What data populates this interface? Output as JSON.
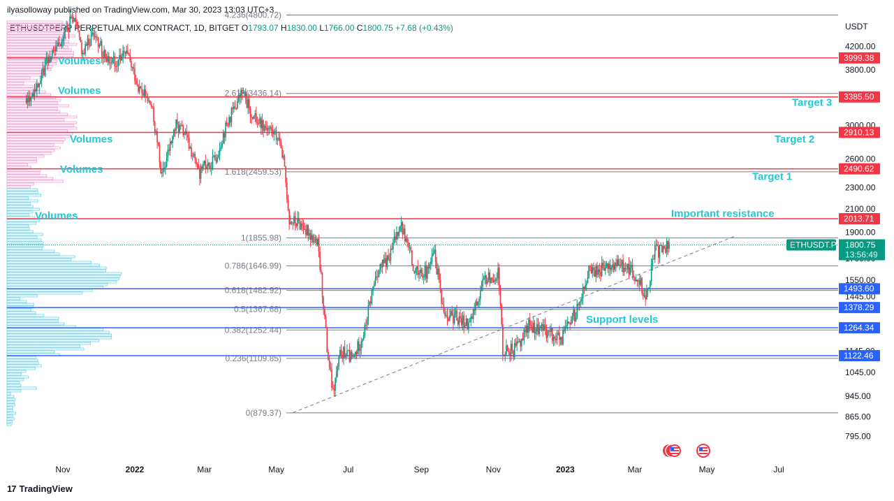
{
  "header": {
    "publisher": "ilyasolloway published on TradingView.com, Mar 30, 2023 13:03 UTC+3",
    "symbol": "ETHUSDTPERP PERPETUAL MIX CONTRACT, 1D, BITGET",
    "open_label": "O",
    "open_value": "1793.07",
    "high_label": "H",
    "high_value": "1830.00",
    "low_label": "L",
    "low_value": "1766.00",
    "close_label": "C",
    "close_value": "1800.75",
    "change": "+7.68 (+0.43%)"
  },
  "footer": {
    "brand": "TradingView",
    "brand_mark": "17"
  },
  "colors": {
    "up": "#089981",
    "down": "#f23645",
    "resistance": "#f23645",
    "support": "#2962ff",
    "annotation": "#22c7d8",
    "volume_upper": "#f7a8dc",
    "volume_lower": "#7fdcf2",
    "fib": "#787b86",
    "price_tag": "#089981"
  },
  "chart_data": {
    "type": "candlestick",
    "y_unit": "USDT",
    "y_scale": "log",
    "ylim": [
      760,
      5200
    ],
    "y_ticks": [
      "4200.00",
      "3800.00",
      "3000.00",
      "2600.00",
      "2300.00",
      "2100.00",
      "1900.00",
      "1700.00",
      "1550.00",
      "1445.00",
      "1145.00",
      "1045.00",
      "945.00",
      "865.00",
      "795.00"
    ],
    "x_ticks": [
      "Nov",
      "2022",
      "Mar",
      "May",
      "Jul",
      "Sep",
      "Nov",
      "2023",
      "Mar",
      "May",
      "Jul"
    ],
    "current_price": {
      "symbol": "ETHUSDT.P",
      "value": "1800.75",
      "countdown": "13:56:49",
      "y": 1800.75
    },
    "resistance_levels": [
      {
        "label": "3999.38",
        "value": 3999.38
      },
      {
        "label": "3385.50",
        "value": 3385.5
      },
      {
        "label": "2910.13",
        "value": 2910.13
      },
      {
        "label": "2490.62",
        "value": 2490.62
      },
      {
        "label": "2013.71",
        "value": 2013.71
      }
    ],
    "support_levels": [
      {
        "label": "1493.60",
        "value": 1493.6
      },
      {
        "label": "1378.29",
        "value": 1378.29
      },
      {
        "label": "1264.34",
        "value": 1264.34
      },
      {
        "label": "1122.46",
        "value": 1122.46
      }
    ],
    "fib_levels": [
      {
        "label": "4.236(4800.72)",
        "value": 4800.72
      },
      {
        "label": "2.618(3436.14)",
        "value": 3436.14
      },
      {
        "label": "1.618(2459.53)",
        "value": 2459.53
      },
      {
        "label": "1(1855.98)",
        "value": 1855.98
      },
      {
        "label": "0.786(1646.99)",
        "value": 1646.99
      },
      {
        "label": "0.618(1482.92)",
        "value": 1482.92
      },
      {
        "label": "0.5(1367.68)",
        "value": 1367.68
      },
      {
        "label": "0.382(1252.44)",
        "value": 1252.44
      },
      {
        "label": "0.236(1109.85)",
        "value": 1109.85
      },
      {
        "label": "0(879.37)",
        "value": 879.37
      }
    ],
    "annotations": [
      {
        "text": "Volumes",
        "price": 3950
      },
      {
        "text": "Volumes",
        "price": 3480
      },
      {
        "text": "Volumes",
        "price": 2830
      },
      {
        "text": "Volumes",
        "price": 2490
      },
      {
        "text": "Volumes",
        "price": 2040
      },
      {
        "text": "Target 3",
        "price": 3310
      },
      {
        "text": "Target 2",
        "price": 2830
      },
      {
        "text": "Target 1",
        "price": 2410
      },
      {
        "text": "Important resistance",
        "price": 2060
      },
      {
        "text": "Support levels",
        "price": 1310
      }
    ],
    "trendline": [
      {
        "date": "2022-05-15",
        "value": 880
      },
      {
        "date": "2023-05-25",
        "value": 1870
      }
    ],
    "price_path": [
      [
        "2021-10-01",
        3300
      ],
      [
        "2021-10-10",
        3550
      ],
      [
        "2021-10-20",
        4000
      ],
      [
        "2021-11-01",
        4400
      ],
      [
        "2021-11-10",
        4750
      ],
      [
        "2021-11-18",
        4100
      ],
      [
        "2021-11-28",
        4500
      ],
      [
        "2021-12-05",
        4050
      ],
      [
        "2021-12-15",
        3950
      ],
      [
        "2021-12-25",
        4050
      ],
      [
        "2022-01-05",
        3500
      ],
      [
        "2022-01-15",
        3250
      ],
      [
        "2022-01-24",
        2400
      ],
      [
        "2022-02-05",
        3000
      ],
      [
        "2022-02-12",
        2900
      ],
      [
        "2022-02-24",
        2450
      ],
      [
        "2022-03-10",
        2600
      ],
      [
        "2022-03-20",
        3000
      ],
      [
        "2022-04-02",
        3450
      ],
      [
        "2022-04-12",
        3100
      ],
      [
        "2022-04-25",
        2950
      ],
      [
        "2022-05-05",
        2800
      ],
      [
        "2022-05-12",
        2000
      ],
      [
        "2022-05-25",
        1950
      ],
      [
        "2022-06-05",
        1800
      ],
      [
        "2022-06-13",
        1150
      ],
      [
        "2022-06-18",
        950
      ],
      [
        "2022-06-25",
        1150
      ],
      [
        "2022-07-05",
        1100
      ],
      [
        "2022-07-15",
        1250
      ],
      [
        "2022-07-25",
        1600
      ],
      [
        "2022-08-05",
        1700
      ],
      [
        "2022-08-14",
        1980
      ],
      [
        "2022-08-25",
        1650
      ],
      [
        "2022-09-05",
        1600
      ],
      [
        "2022-09-12",
        1720
      ],
      [
        "2022-09-20",
        1350
      ],
      [
        "2022-10-01",
        1320
      ],
      [
        "2022-10-12",
        1290
      ],
      [
        "2022-10-25",
        1550
      ],
      [
        "2022-11-05",
        1600
      ],
      [
        "2022-11-09",
        1150
      ],
      [
        "2022-11-20",
        1150
      ],
      [
        "2022-12-01",
        1280
      ],
      [
        "2022-12-15",
        1250
      ],
      [
        "2022-12-28",
        1200
      ],
      [
        "2023-01-10",
        1350
      ],
      [
        "2023-01-20",
        1600
      ],
      [
        "2023-02-01",
        1620
      ],
      [
        "2023-02-15",
        1650
      ],
      [
        "2023-02-25",
        1620
      ],
      [
        "2023-03-05",
        1560
      ],
      [
        "2023-03-10",
        1420
      ],
      [
        "2023-03-18",
        1750
      ],
      [
        "2023-03-25",
        1760
      ],
      [
        "2023-03-30",
        1800.75
      ]
    ]
  }
}
